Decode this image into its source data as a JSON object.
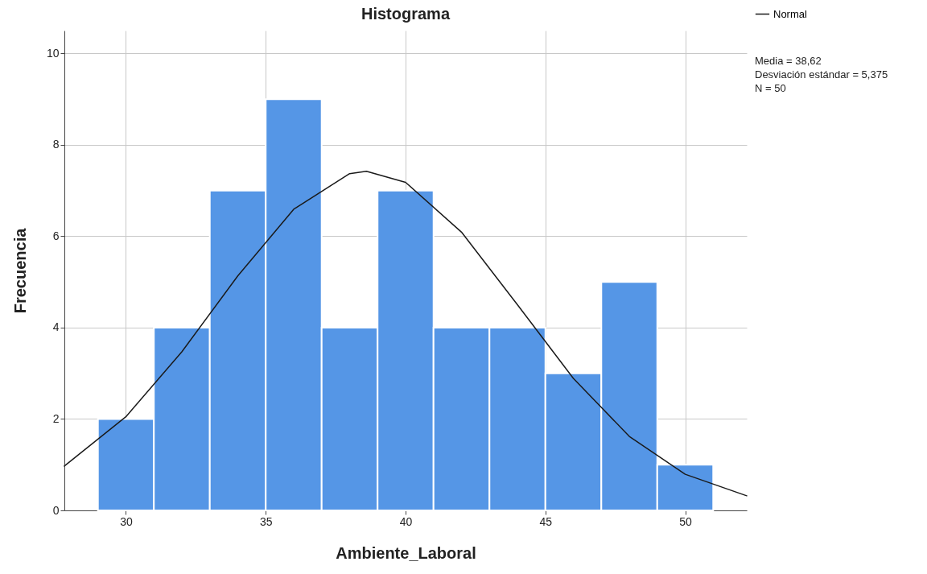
{
  "chart_data": {
    "type": "histogram",
    "title": "Histograma",
    "xlabel": "Ambiente_Laboral",
    "ylabel": "Frecuencia",
    "bins": [
      29,
      31,
      33,
      35,
      37,
      39,
      41,
      43,
      45,
      47,
      49,
      51
    ],
    "values": [
      2,
      4,
      7,
      9,
      4,
      7,
      4,
      4,
      3,
      5,
      1
    ],
    "color": "#5596e6",
    "series": [
      {
        "name": "Normal",
        "type": "line",
        "color": "#1a1a1a",
        "x": [
          27.8,
          30,
          32,
          34,
          36,
          38,
          38.6,
          40,
          42,
          44,
          46,
          48,
          50,
          52.2
        ],
        "values": [
          0.97,
          2.05,
          3.47,
          5.13,
          6.59,
          7.37,
          7.42,
          7.18,
          6.09,
          4.5,
          2.89,
          1.62,
          0.79,
          0.32
        ]
      }
    ],
    "xlim": [
      27.8,
      52.2
    ],
    "xticks": [
      30,
      35,
      40,
      45,
      50
    ],
    "ylim": [
      0,
      10.5
    ],
    "yticks": [
      0,
      2,
      4,
      6,
      8,
      10
    ],
    "grid": true,
    "legend": "top right",
    "annotations": [
      "Media = 38,62",
      "Desviación estándar = 5,375",
      "N = 50"
    ]
  }
}
